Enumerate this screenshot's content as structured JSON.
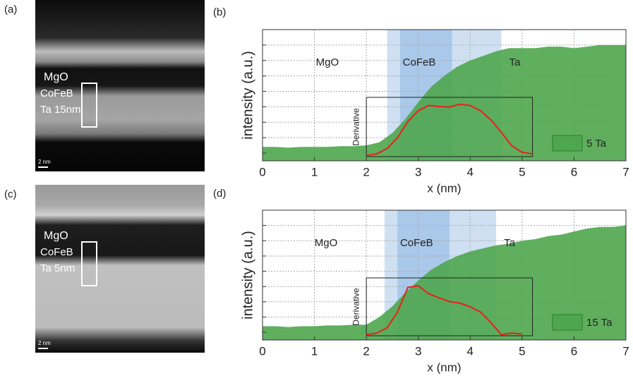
{
  "images": [
    {
      "panel": "(a)",
      "labels": [
        "MgO",
        "CoFeB",
        "Ta 15nm"
      ],
      "scale": "2 nm"
    },
    {
      "panel": "(c)",
      "labels": [
        "MgO",
        "CoFeB",
        "Ta 5nm"
      ],
      "scale": "2 nm"
    }
  ],
  "chart_data": [
    {
      "type": "area",
      "panel": "(b)",
      "xlabel": "x (nm)",
      "ylabel": "intensity (a.u.)",
      "xlim": [
        0,
        7
      ],
      "xticks": [
        0,
        1,
        2,
        3,
        4,
        5,
        6,
        7
      ],
      "ylim": [
        -0.5,
        8
      ],
      "yticks": [
        0,
        1,
        2,
        3,
        4,
        5,
        6,
        7
      ],
      "grid": true,
      "bands": [
        {
          "xlim": [
            2.4,
            4.6
          ],
          "color": "#cfe0f3"
        },
        {
          "xlim": [
            2.65,
            3.65
          ],
          "color": "#a9c8ea"
        }
      ],
      "annotations": [
        "MgO",
        "CoFeB",
        "Ta"
      ],
      "x": [
        0,
        0.25,
        0.5,
        0.75,
        1,
        1.25,
        1.5,
        1.75,
        2,
        2.25,
        2.5,
        2.75,
        3,
        3.25,
        3.5,
        3.75,
        4,
        4.25,
        4.5,
        4.75,
        5,
        5.25,
        5.5,
        5.75,
        6,
        6.25,
        6.5,
        6.75,
        7
      ],
      "series": [
        {
          "name": "5 Ta",
          "color": "#4ea64e",
          "values": [
            0.4,
            0.4,
            0.35,
            0.4,
            0.4,
            0.4,
            0.45,
            0.45,
            0.5,
            0.7,
            1.3,
            2.2,
            3.3,
            4.3,
            5.0,
            5.6,
            6.0,
            6.3,
            6.6,
            6.8,
            6.8,
            6.8,
            6.9,
            6.9,
            6.8,
            6.9,
            7.0,
            7.0,
            7.0
          ]
        }
      ],
      "inset": {
        "ylabel": "Derivative",
        "xlim": [
          2,
          5.2
        ],
        "ylim": [
          0,
          1.1
        ],
        "color": "#e8201c",
        "x": [
          2,
          2.2,
          2.4,
          2.6,
          2.8,
          3.0,
          3.2,
          3.4,
          3.6,
          3.8,
          4.0,
          4.2,
          4.4,
          4.6,
          4.8,
          5.0,
          5.2
        ],
        "values": [
          0.02,
          0.05,
          0.15,
          0.35,
          0.65,
          0.85,
          0.95,
          0.93,
          0.92,
          0.97,
          0.95,
          0.85,
          0.68,
          0.45,
          0.2,
          0.08,
          0.05
        ]
      }
    },
    {
      "type": "area",
      "panel": "(d)",
      "xlabel": "x (nm)",
      "ylabel": "intensity (a.u.)",
      "xlim": [
        0,
        7
      ],
      "xticks": [
        0,
        1,
        2,
        3,
        4,
        5,
        6,
        7
      ],
      "ylim": [
        -0.5,
        8
      ],
      "yticks": [
        0,
        1,
        2,
        3,
        4,
        5,
        6,
        7
      ],
      "grid": true,
      "bands": [
        {
          "xlim": [
            2.35,
            4.5
          ],
          "color": "#cfe0f3"
        },
        {
          "xlim": [
            2.6,
            3.6
          ],
          "color": "#a9c8ea"
        }
      ],
      "annotations": [
        "MgO",
        "CoFeB",
        "Ta"
      ],
      "x": [
        0,
        0.25,
        0.5,
        0.75,
        1,
        1.25,
        1.5,
        1.75,
        2,
        2.25,
        2.5,
        2.75,
        3,
        3.25,
        3.5,
        3.75,
        4,
        4.25,
        4.5,
        4.75,
        5,
        5.25,
        5.5,
        5.75,
        6,
        6.25,
        6.5,
        6.75,
        7
      ],
      "series": [
        {
          "name": "15 Ta",
          "color": "#4ea64e",
          "values": [
            0.4,
            0.4,
            0.35,
            0.4,
            0.4,
            0.45,
            0.45,
            0.5,
            0.5,
            1.0,
            1.7,
            2.6,
            3.4,
            4.1,
            4.6,
            5.0,
            5.3,
            5.5,
            5.7,
            5.8,
            6.0,
            6.1,
            6.3,
            6.4,
            6.6,
            6.8,
            6.9,
            6.9,
            7.0
          ]
        }
      ],
      "inset": {
        "ylabel": "Derivative",
        "xlim": [
          2,
          5.2
        ],
        "ylim": [
          0,
          1.1
        ],
        "color": "#e8201c",
        "x": [
          2,
          2.2,
          2.4,
          2.6,
          2.8,
          3.0,
          3.2,
          3.4,
          3.6,
          3.8,
          4.0,
          4.2,
          4.4,
          4.6,
          4.8,
          5.0
        ],
        "values": [
          0.02,
          0.05,
          0.15,
          0.45,
          0.92,
          0.95,
          0.8,
          0.72,
          0.65,
          0.62,
          0.55,
          0.45,
          0.25,
          0.02,
          0.05,
          0.03
        ]
      }
    }
  ]
}
